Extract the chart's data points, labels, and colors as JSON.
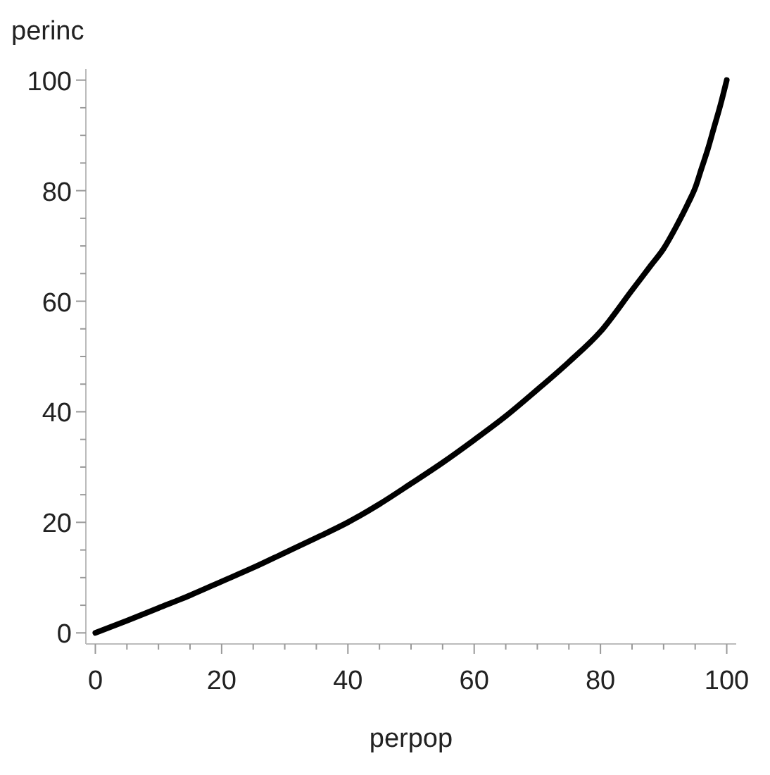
{
  "chart_data": {
    "type": "line",
    "xlabel": "perpop",
    "ylabel": "perinc",
    "x": [
      0,
      5,
      10,
      15,
      20,
      25,
      30,
      35,
      40,
      45,
      50,
      55,
      60,
      65,
      70,
      75,
      80,
      85,
      88,
      90,
      92,
      94,
      95,
      96,
      97,
      98,
      99,
      100
    ],
    "series": [
      {
        "color": "#000000",
        "values": [
          0,
          2.2,
          4.5,
          6.8,
          9.3,
          11.8,
          14.5,
          17.2,
          20,
          23.3,
          27,
          30.8,
          34.9,
          39.2,
          44,
          49,
          54.5,
          62,
          66.5,
          69.5,
          73.5,
          78,
          80.5,
          84,
          87.5,
          91.5,
          95.5,
          100
        ]
      }
    ],
    "xlim": [
      -1.5,
      101.5
    ],
    "ylim": [
      -2,
      102
    ],
    "xticks": [
      0,
      {
        "value": 5,
        "label": null
      },
      {
        "value": 10,
        "label": null
      },
      {
        "value": 15,
        "label": null
      },
      20,
      {
        "value": 25,
        "label": null
      },
      {
        "value": 30,
        "label": null
      },
      {
        "value": 35,
        "label": null
      },
      40,
      {
        "value": 45,
        "label": null
      },
      {
        "value": 50,
        "label": null
      },
      {
        "value": 55,
        "label": null
      },
      60,
      {
        "value": 65,
        "label": null
      },
      {
        "value": 70,
        "label": null
      },
      {
        "value": 75,
        "label": null
      },
      80,
      {
        "value": 85,
        "label": null
      },
      {
        "value": 90,
        "label": null
      },
      {
        "value": 95,
        "label": null
      },
      100
    ],
    "yticks": [
      0,
      {
        "value": 5,
        "label": null
      },
      {
        "value": 10,
        "label": null
      },
      {
        "value": 15,
        "label": null
      },
      20,
      {
        "value": 25,
        "label": null
      },
      {
        "value": 30,
        "label": null
      },
      {
        "value": 35,
        "label": null
      },
      40,
      {
        "value": 45,
        "label": null
      },
      {
        "value": 50,
        "label": null
      },
      {
        "value": 55,
        "label": null
      },
      60,
      {
        "value": 65,
        "label": null
      },
      {
        "value": 70,
        "label": null
      },
      {
        "value": 75,
        "label": null
      },
      80,
      {
        "value": 85,
        "label": null
      },
      {
        "value": 90,
        "label": null
      },
      {
        "value": 95,
        "label": null
      },
      100
    ],
    "grid": false,
    "legend": false,
    "marker": "none",
    "line_style": "solid"
  }
}
